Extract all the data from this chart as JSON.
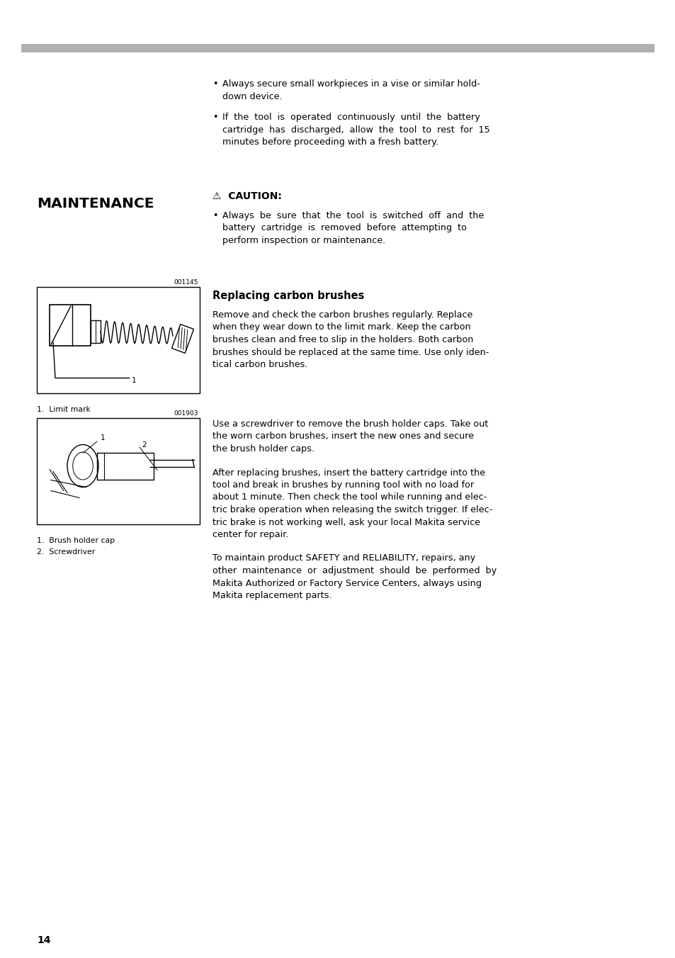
{
  "background_color": "#ffffff",
  "top_bar_color": "#aaaaaa",
  "page_number": "14",
  "bullet1_line1": "Always secure small workpieces in a vise or similar hold-",
  "bullet1_line2": "down device.",
  "bullet2_line1": "If  the  tool  is  operated  continuously  until  the  battery",
  "bullet2_line2": "cartridge  has  discharged,  allow  the  tool  to  rest  for  15",
  "bullet2_line3": "minutes before proceeding with a fresh battery.",
  "section_title": "MAINTENANCE",
  "caution_title": "⚠  CAUTION:",
  "caution_line1": "Always  be  sure  that  the  tool  is  switched  off  and  the",
  "caution_line2": "battery  cartridge  is  removed  before  attempting  to",
  "caution_line3": "perform inspection or maintenance.",
  "fig1_label": "001145",
  "fig1_caption": "1.  Limit mark",
  "fig2_label": "001903",
  "fig2_caption1": "1.  Brush holder cap",
  "fig2_caption2": "2.  Screwdriver",
  "replacing_title": "Replacing carbon brushes",
  "rp_line1": "Remove and check the carbon brushes regularly. Replace",
  "rp_line2": "when they wear down to the limit mark. Keep the carbon",
  "rp_line3": "brushes clean and free to slip in the holders. Both carbon",
  "rp_line4": "brushes should be replaced at the same time. Use only iden-",
  "rp_line5": "tical carbon brushes.",
  "p2_line1": "Use a screwdriver to remove the brush holder caps. Take out",
  "p2_line2": "the worn carbon brushes, insert the new ones and secure",
  "p2_line3": "the brush holder caps.",
  "p3_line1": "After replacing brushes, insert the battery cartridge into the",
  "p3_line2": "tool and break in brushes by running tool with no load for",
  "p3_line3": "about 1 minute. Then check the tool while running and elec-",
  "p3_line4": "tric brake operation when releasing the switch trigger. If elec-",
  "p3_line5": "tric brake is not working well, ask your local Makita service",
  "p3_line6": "center for repair.",
  "p4_line1": "To maintain product SAFETY and RELIABILITY, repairs, any",
  "p4_line2": "other  maintenance  or  adjustment  should  be  performed  by",
  "p4_line3": "Makita Authorized or Factory Service Centers, always using",
  "p4_line4": "Makita replacement parts."
}
